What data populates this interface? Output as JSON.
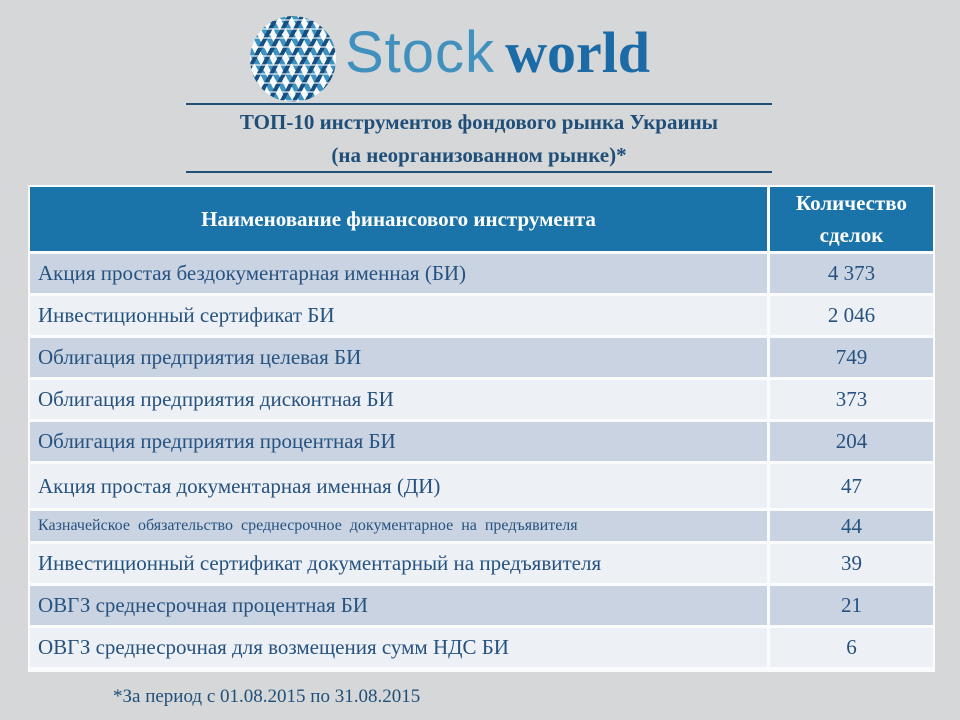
{
  "logo": {
    "word1": "Stock",
    "word2": "world"
  },
  "title": {
    "line1": "ТОП-10 инструментов фондового рынка Украины",
    "line2": "(на неорганизованном  рынке)*"
  },
  "table": {
    "columns": [
      "Наименование финансового инструмента",
      "Количество сделок"
    ],
    "rows": [
      {
        "name": "Акция простая бездокументарная именная (БИ)",
        "count": "4 373"
      },
      {
        "name": "Инвестиционный сертификат БИ",
        "count": "2 046"
      },
      {
        "name": "Облигация предприятия целевая БИ",
        "count": "749"
      },
      {
        "name": "Облигация предприятия дисконтная БИ",
        "count": "373"
      },
      {
        "name": "Облигация предприятия процентная БИ",
        "count": "204"
      },
      {
        "name": "Акция простая документарная именная (ДИ)",
        "count": "47"
      },
      {
        "name": "Казначейское обязательство среднесрочное документарное на предъявителя",
        "count": "44"
      },
      {
        "name": "Инвестиционный сертификат документарный на предъявителя",
        "count": "39"
      },
      {
        "name": "ОВГЗ среднесрочная процентная БИ",
        "count": "21"
      },
      {
        "name": "ОВГЗ среднесрочная для возмещения сумм НДС БИ",
        "count": "6"
      }
    ]
  },
  "footnote": "*За период с 01.08.2015  по 31.08.2015",
  "colors": {
    "page_background": "#d5d7d8",
    "header_blue": "#1a73a9",
    "row_light_blue": "#c9d3e2",
    "row_white": "#edf0f5",
    "navy_text": "#1f4e79",
    "row_text": "#26527f",
    "logo_light_blue": "#4191bf",
    "logo_dark_blue": "#1c6ba6"
  }
}
